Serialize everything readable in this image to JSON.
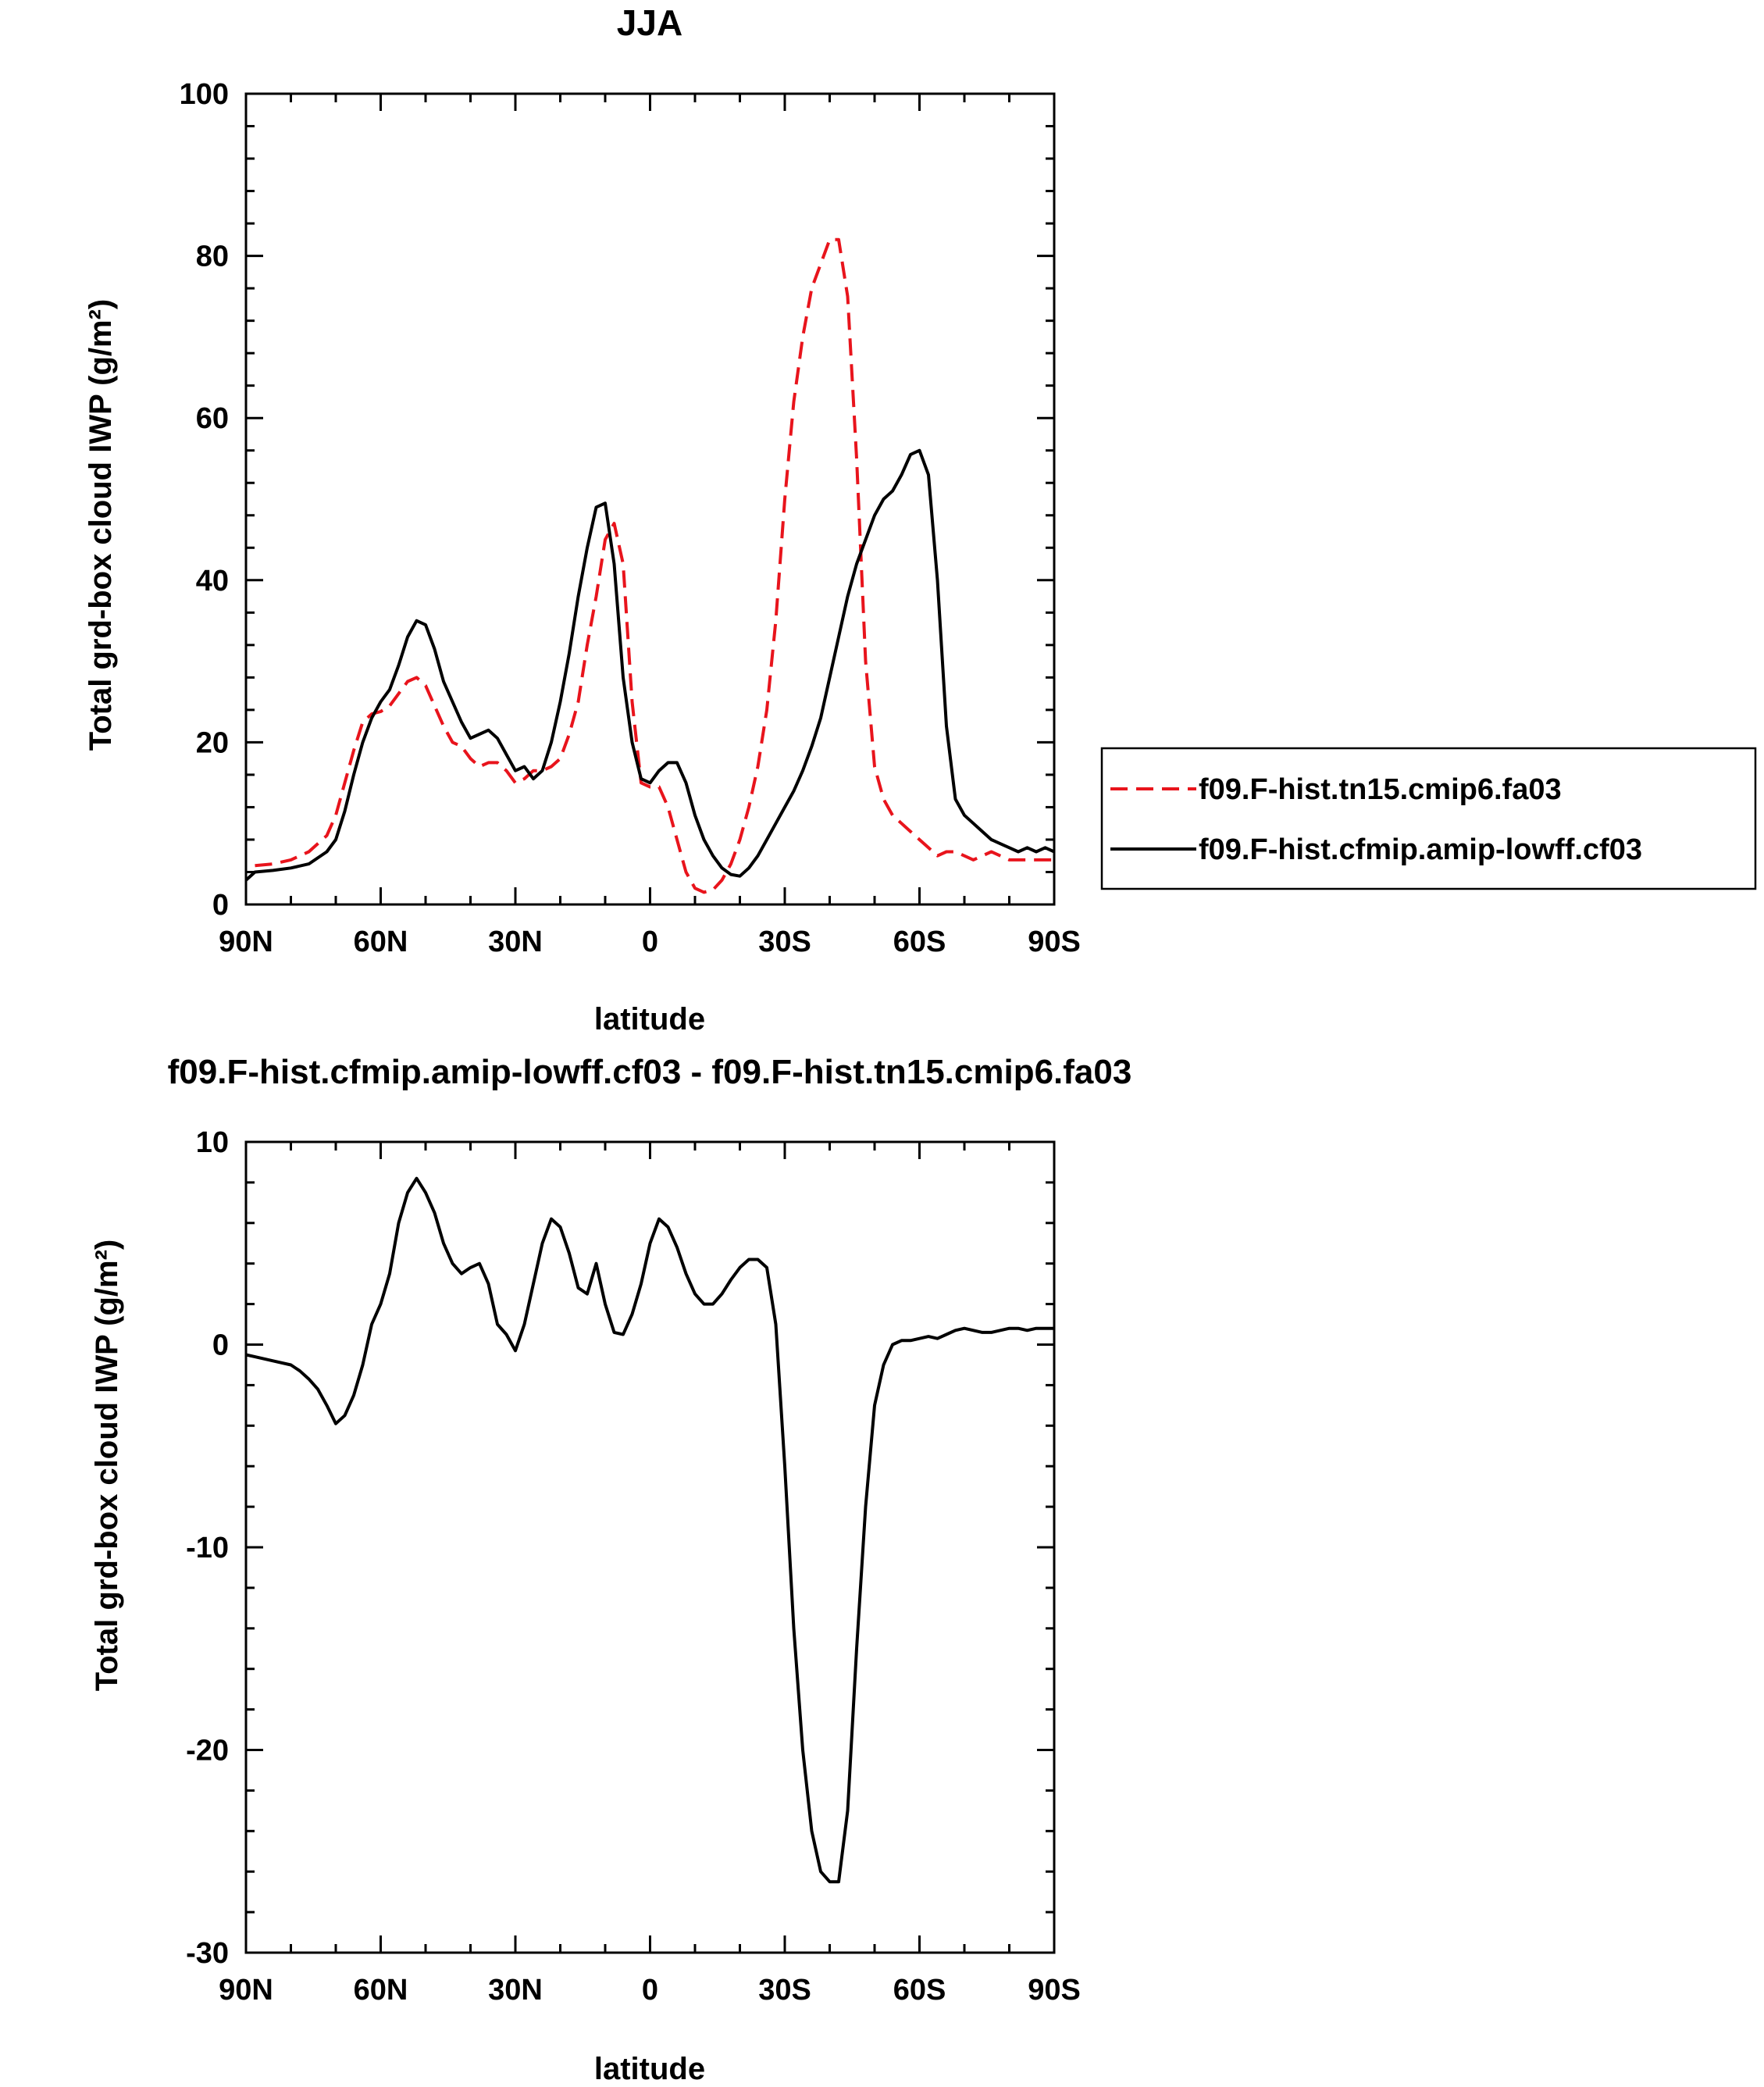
{
  "chart_data": [
    {
      "type": "line",
      "title": "JJA",
      "xlabel": "latitude",
      "ylabel": "Total grd-box cloud IWP (g/m²)",
      "xlim": [
        90,
        -90
      ],
      "ylim": [
        0,
        100
      ],
      "x_ticks": [
        {
          "value": 90,
          "label": "90N"
        },
        {
          "value": 60,
          "label": "60N"
        },
        {
          "value": 30,
          "label": "30N"
        },
        {
          "value": 0,
          "label": "0"
        },
        {
          "value": -30,
          "label": "30S"
        },
        {
          "value": -60,
          "label": "60S"
        },
        {
          "value": -90,
          "label": "90S"
        }
      ],
      "y_ticks": [
        0,
        20,
        40,
        60,
        80,
        100
      ],
      "legend": {
        "placement": "right"
      },
      "series": [
        {
          "name": "f09.F-hist.tn15.cmip6.fa03",
          "color": "#e8141c",
          "style": "dashed",
          "x": [
            90,
            88,
            84,
            80,
            76,
            72,
            70,
            68,
            66,
            64,
            62,
            60,
            58,
            56,
            54,
            52,
            50,
            48,
            46,
            44,
            42,
            40,
            38,
            36,
            34,
            32,
            30,
            28,
            26,
            24,
            22,
            20,
            18,
            16,
            14,
            12,
            10,
            8,
            6,
            4,
            2,
            0,
            -2,
            -4,
            -6,
            -8,
            -10,
            -12,
            -14,
            -16,
            -18,
            -20,
            -22,
            -24,
            -26,
            -28,
            -30,
            -32,
            -34,
            -36,
            -38,
            -40,
            -42,
            -44,
            -46,
            -48,
            -50,
            -52,
            -54,
            -56,
            -58,
            -60,
            -62,
            -64,
            -66,
            -68,
            -70,
            -72,
            -74,
            -76,
            -78,
            -80,
            -82,
            -84,
            -86,
            -88,
            -90
          ],
          "y": [
            4.5,
            4.8,
            5.0,
            5.5,
            6.5,
            8.5,
            11,
            15,
            19,
            22.5,
            23.5,
            23.8,
            24.5,
            26,
            27.5,
            28,
            27,
            24.5,
            22,
            20,
            19.5,
            18,
            17,
            17.5,
            17.5,
            16.5,
            15,
            15.5,
            16.5,
            16.5,
            17,
            18,
            21,
            25,
            32,
            38,
            45,
            47,
            42,
            25,
            15,
            14.5,
            14.5,
            12,
            8,
            4,
            2,
            1.5,
            1.8,
            3,
            5,
            8,
            12,
            17,
            24,
            35,
            50,
            62,
            70,
            76,
            79,
            82,
            82,
            75,
            55,
            30,
            17,
            13,
            11,
            10,
            9,
            8,
            7,
            6,
            6.5,
            6.5,
            6,
            5.5,
            6,
            6.5,
            6,
            5.5,
            5.5,
            5.5,
            5.5,
            5.5,
            5.5
          ],
          "x_trim": 88
        },
        {
          "name": "f09.F-hist.cfmip.amip-lowff.cf03",
          "color": "#000000",
          "style": "solid",
          "x": [
            90,
            88,
            84,
            80,
            76,
            72,
            70,
            68,
            66,
            64,
            62,
            60,
            58,
            56,
            54,
            52,
            50,
            48,
            46,
            44,
            42,
            40,
            38,
            36,
            34,
            32,
            30,
            28,
            26,
            24,
            22,
            20,
            18,
            16,
            14,
            12,
            10,
            8,
            6,
            4,
            2,
            0,
            -2,
            -4,
            -6,
            -8,
            -10,
            -12,
            -14,
            -16,
            -18,
            -20,
            -22,
            -24,
            -26,
            -28,
            -30,
            -32,
            -34,
            -36,
            -38,
            -40,
            -42,
            -44,
            -46,
            -48,
            -50,
            -52,
            -54,
            -56,
            -58,
            -60,
            -62,
            -64,
            -66,
            -68,
            -70,
            -72,
            -74,
            -76,
            -78,
            -80,
            -82,
            -84,
            -86,
            -88,
            -90
          ],
          "y": [
            3,
            4,
            4.2,
            4.5,
            5,
            6.5,
            8,
            11.5,
            16,
            20,
            23,
            25,
            26.5,
            29.5,
            33,
            35,
            34.5,
            31.5,
            27.5,
            25,
            22.5,
            20.5,
            21,
            21.5,
            20.5,
            18.5,
            16.5,
            17,
            15.5,
            16.5,
            20,
            25,
            31,
            38,
            44,
            49,
            49.5,
            42,
            28,
            20,
            15.5,
            15,
            16.5,
            17.5,
            17.5,
            15,
            11,
            8,
            6,
            4.5,
            3.7,
            3.5,
            4.5,
            6,
            8,
            10,
            12,
            14,
            16.5,
            19.5,
            23,
            28,
            33,
            38,
            42,
            45,
            48,
            50,
            51,
            53,
            55.5,
            56,
            53,
            40,
            22,
            13,
            11,
            10,
            9,
            8,
            7.5,
            7,
            6.5,
            7,
            6.5,
            7,
            6.5
          ]
        }
      ]
    },
    {
      "type": "line",
      "title": "f09.F-hist.cfmip.amip-lowff.cf03 - f09.F-hist.tn15.cmip6.fa03",
      "xlabel": "latitude",
      "ylabel": "Total grd-box cloud IWP (g/m²)",
      "xlim": [
        90,
        -90
      ],
      "ylim": [
        -30,
        10
      ],
      "x_ticks": [
        {
          "value": 90,
          "label": "90N"
        },
        {
          "value": 60,
          "label": "60N"
        },
        {
          "value": 30,
          "label": "30N"
        },
        {
          "value": 0,
          "label": "0"
        },
        {
          "value": -30,
          "label": "30S"
        },
        {
          "value": -60,
          "label": "60S"
        },
        {
          "value": -90,
          "label": "90S"
        }
      ],
      "y_ticks": [
        -30,
        -20,
        -10,
        0,
        10
      ],
      "series": [
        {
          "color": "#000000",
          "style": "solid",
          "x": [
            90,
            88,
            84,
            80,
            78,
            76,
            74,
            72,
            70,
            68,
            66,
            64,
            62,
            60,
            58,
            56,
            54,
            52,
            50,
            48,
            46,
            44,
            42,
            40,
            38,
            36,
            34,
            32,
            30,
            28,
            26,
            24,
            22,
            20,
            18,
            16,
            14,
            12,
            10,
            8,
            6,
            4,
            2,
            0,
            -2,
            -4,
            -6,
            -8,
            -10,
            -12,
            -14,
            -16,
            -18,
            -20,
            -22,
            -24,
            -26,
            -28,
            -30,
            -32,
            -34,
            -36,
            -38,
            -40,
            -42,
            -44,
            -46,
            -48,
            -50,
            -52,
            -54,
            -56,
            -58,
            -60,
            -62,
            -64,
            -66,
            -68,
            -70,
            -72,
            -74,
            -76,
            -78,
            -80,
            -82,
            -84,
            -86,
            -88,
            -90
          ],
          "y": [
            -0.5,
            -0.6,
            -0.8,
            -1,
            -1.3,
            -1.7,
            -2.2,
            -3,
            -3.9,
            -3.5,
            -2.5,
            -1,
            1,
            2,
            3.5,
            6,
            7.5,
            8.2,
            7.5,
            6.5,
            5,
            4,
            3.5,
            3.8,
            4,
            3,
            1,
            0.5,
            -0.3,
            1,
            3,
            5,
            6.2,
            5.8,
            4.5,
            2.8,
            2.5,
            4,
            2,
            0.6,
            0.5,
            1.5,
            3,
            5,
            6.2,
            5.8,
            4.8,
            3.5,
            2.5,
            2,
            2,
            2.5,
            3.2,
            3.8,
            4.2,
            4.2,
            3.8,
            1,
            -6,
            -14,
            -20,
            -24,
            -26,
            -26.5,
            -26.5,
            -23,
            -15,
            -8,
            -3,
            -1,
            0,
            0.2,
            0.2,
            0.3,
            0.4,
            0.3,
            0.5,
            0.7,
            0.8,
            0.7,
            0.6,
            0.6,
            0.7,
            0.8,
            0.8,
            0.7,
            0.8,
            0.8,
            0.8
          ]
        }
      ]
    }
  ]
}
